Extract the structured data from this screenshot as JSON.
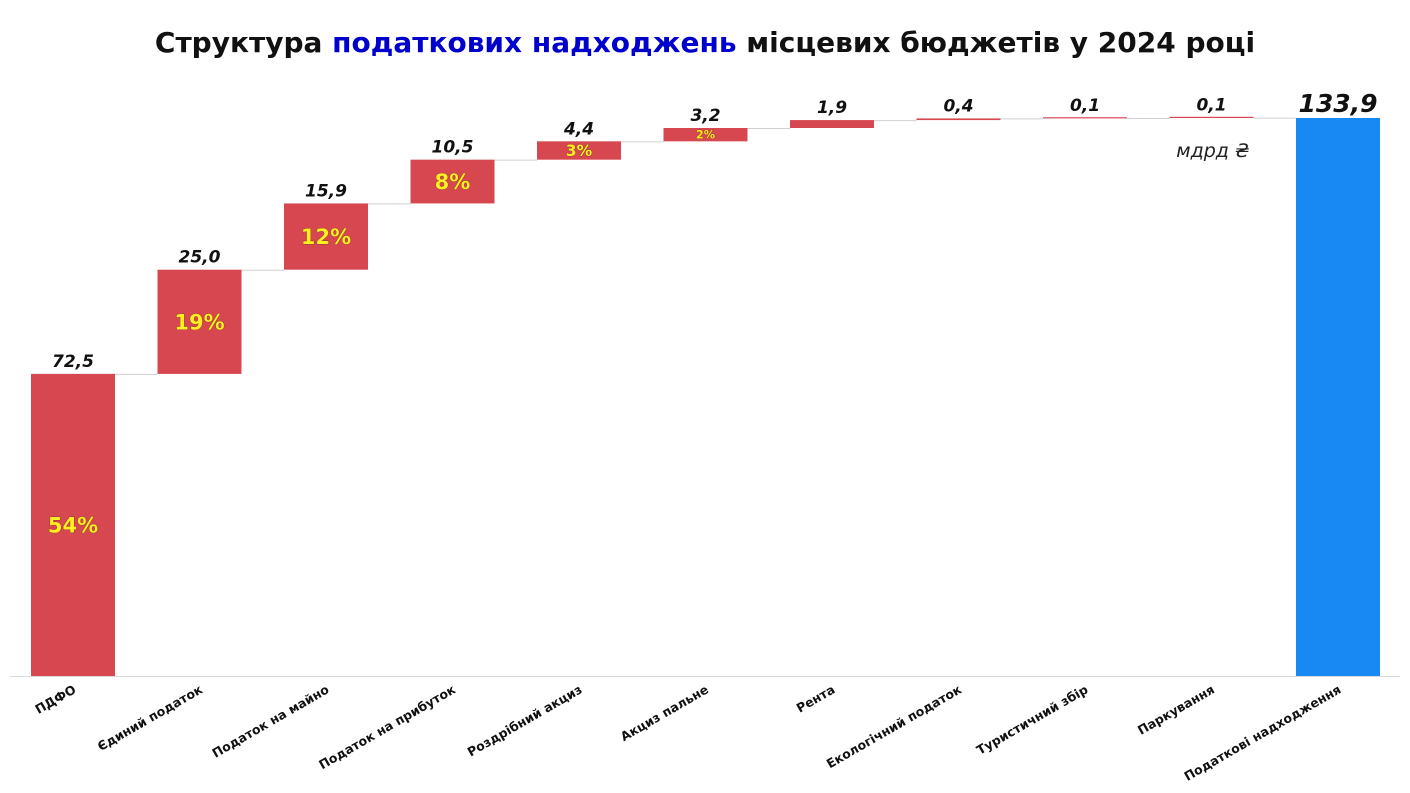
{
  "title": {
    "part1": "Структура ",
    "highlight": "податкових надходжень",
    "part2": "  місцевих бюджетів у 2024 році"
  },
  "colors": {
    "component_bar": "#d6474f",
    "total_bar": "#1888f2",
    "pct_label": "#ffee22",
    "title_highlight": "#0000cc"
  },
  "chart_data": {
    "type": "bar",
    "subtype": "waterfall",
    "unit_label": "мдрд ₴",
    "categories": [
      "ПДФО",
      "Єдиний податок",
      "Податок на майно",
      "Податок на прибуток",
      "Роздрібний акциз",
      "Акциз пальне",
      "Рента",
      "Екологічний податок",
      "Туристичний збір",
      "Паркування",
      "Податкові надходження"
    ],
    "values": [
      72.5,
      25.0,
      15.9,
      10.5,
      4.4,
      3.2,
      1.9,
      0.4,
      0.1,
      0.1,
      133.9
    ],
    "value_labels": [
      "72,5",
      "25,0",
      "15,9",
      "10,5",
      "4,4",
      "3,2",
      "1,9",
      "0,4",
      "0,1",
      "0,1",
      "133,9"
    ],
    "percent_labels": [
      "54%",
      "19%",
      "12%",
      "8%",
      "3%",
      "2%",
      "",
      "",
      "",
      "",
      ""
    ],
    "total_index": 10,
    "ylim": [
      0,
      133.9
    ],
    "grid": false,
    "legend": "none"
  }
}
